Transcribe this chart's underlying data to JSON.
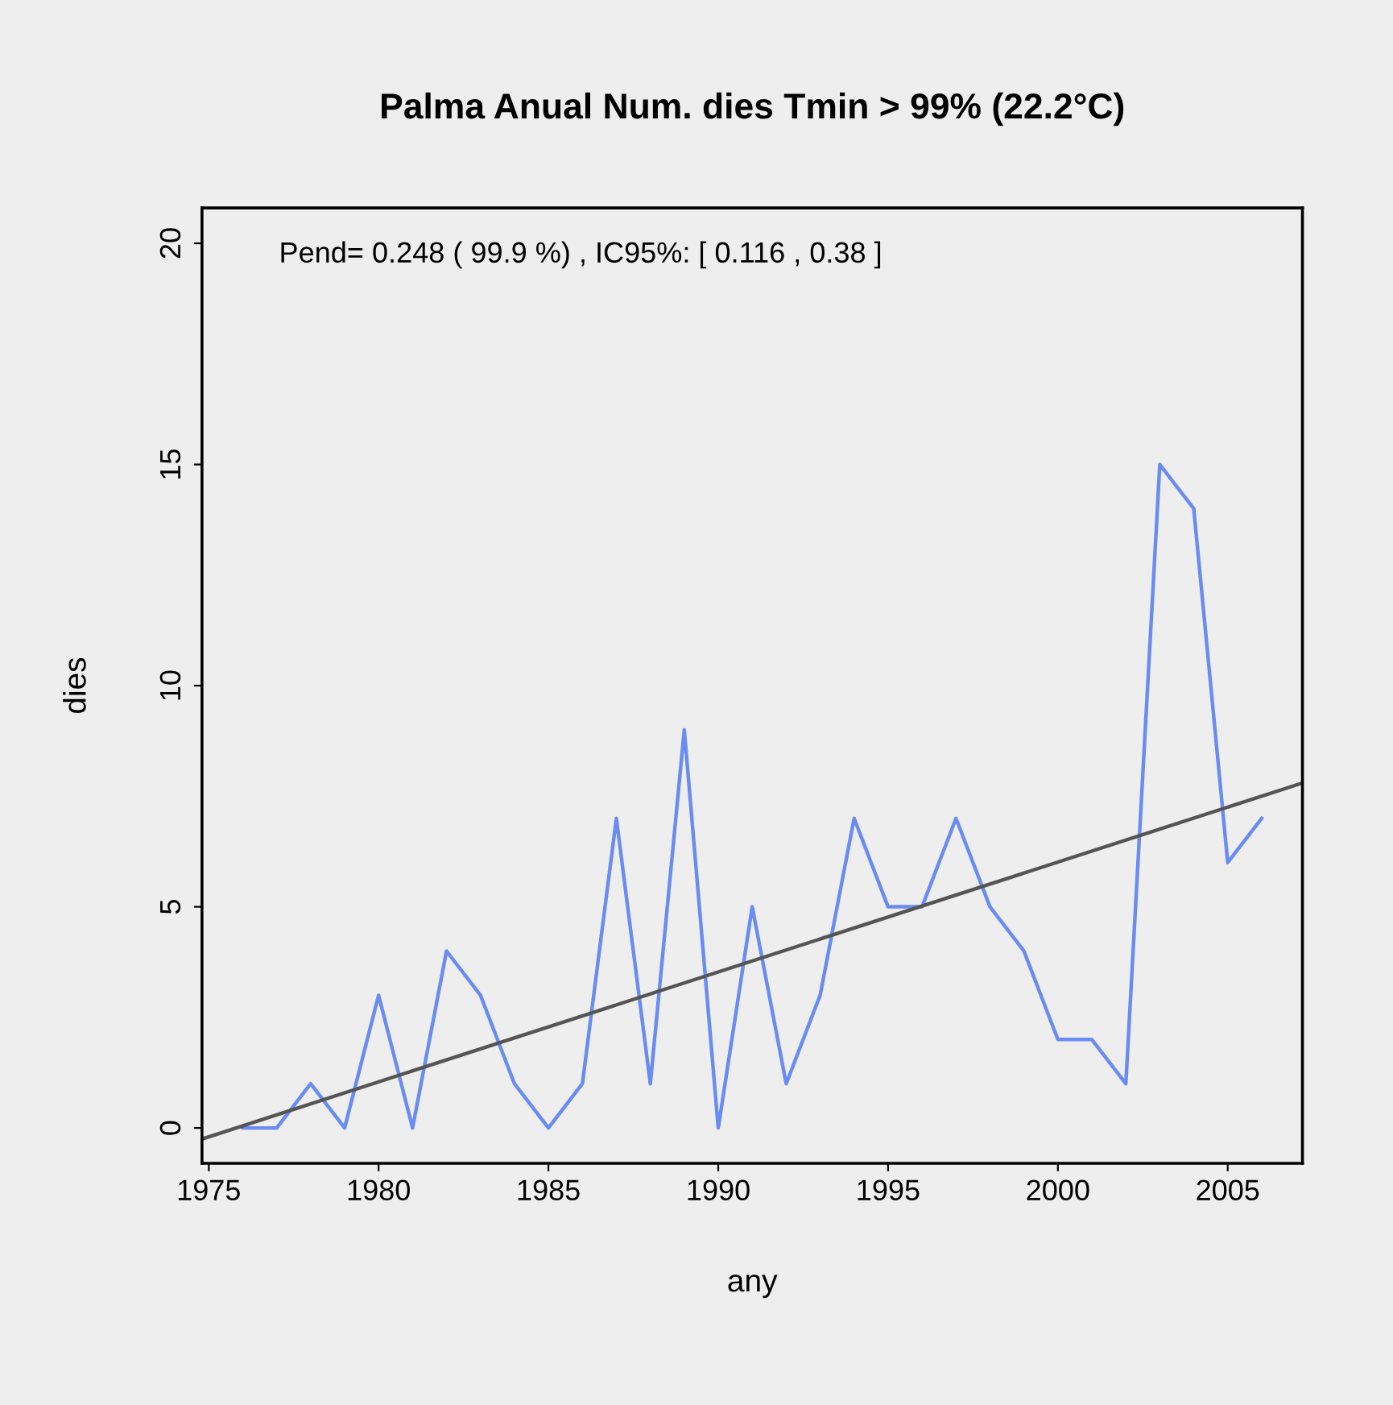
{
  "chart_data": {
    "type": "line",
    "title": "Palma Anual Num. dies Tmin > 99% (22.2°C)",
    "xlabel": "any",
    "ylabel": "dies",
    "annotations": [
      "Pend= 0.248 ( 99.9 %) , IC95%: [ 0.116 , 0.38 ]"
    ],
    "series": [
      {
        "color": "#6a8cf2",
        "x": [
          1976,
          1977,
          1978,
          1979,
          1980,
          1981,
          1982,
          1983,
          1984,
          1985,
          1986,
          1987,
          1988,
          1989,
          1990,
          1991,
          1992,
          1993,
          1994,
          1995,
          1996,
          1997,
          1998,
          1999,
          2000,
          2001,
          2002,
          2003,
          2004,
          2005,
          2006
        ],
        "values": [
          0,
          0,
          1,
          0,
          3,
          0,
          4,
          3,
          1,
          0,
          1,
          7,
          1,
          9,
          0,
          5,
          1,
          3,
          7,
          5,
          5,
          7,
          5,
          4,
          2,
          2,
          1,
          15,
          14,
          6,
          7
        ]
      },
      {
        "type": "line",
        "color": "#555555",
        "x": [
          1974.8,
          2007.2
        ],
        "values": [
          -0.25,
          7.8
        ]
      }
    ],
    "xlim": [
      1974.8,
      2007.2
    ],
    "xticks": [
      1975,
      1980,
      1985,
      1990,
      1995,
      2000,
      2005
    ],
    "ylim": [
      -0.8,
      20.8
    ],
    "yticks": [
      0,
      5,
      10,
      15,
      20
    ],
    "grid": false,
    "legend": false,
    "marker": "none",
    "line_style": "solid"
  }
}
